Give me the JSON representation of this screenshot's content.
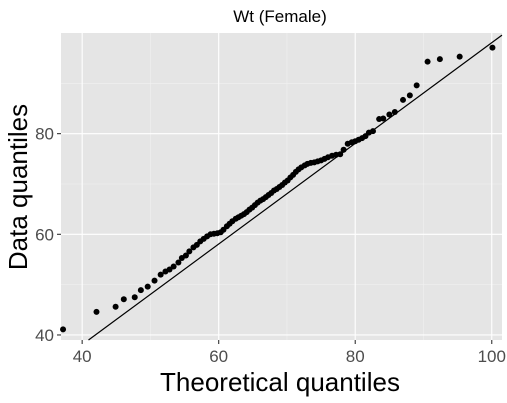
{
  "chart_data": {
    "type": "scatter",
    "title": "Wt (Female)",
    "xlabel": "Theoretical quantiles",
    "ylabel": "Data quantiles",
    "xlim": [
      36.9,
      101.5
    ],
    "ylim": [
      39.0,
      100.0
    ],
    "x_ticks": [
      40,
      60,
      80,
      100
    ],
    "y_ticks": [
      40,
      60,
      80
    ],
    "x_tick_labels": [
      "40",
      "60",
      "80",
      "100"
    ],
    "y_tick_labels": [
      "40",
      "60",
      "80"
    ],
    "grid": true,
    "reference_line": {
      "intercept": -1.93,
      "slope": 1.0
    },
    "points": [
      {
        "x": 37.2,
        "y": 41.1
      },
      {
        "x": 42.1,
        "y": 44.6
      },
      {
        "x": 44.9,
        "y": 45.6
      },
      {
        "x": 46.1,
        "y": 47.1
      },
      {
        "x": 47.7,
        "y": 47.5
      },
      {
        "x": 48.6,
        "y": 48.9
      },
      {
        "x": 49.6,
        "y": 49.6
      },
      {
        "x": 50.6,
        "y": 50.8
      },
      {
        "x": 51.5,
        "y": 52.0
      },
      {
        "x": 52.2,
        "y": 52.6
      },
      {
        "x": 52.8,
        "y": 53.0
      },
      {
        "x": 53.4,
        "y": 53.6
      },
      {
        "x": 54.1,
        "y": 54.4
      },
      {
        "x": 54.6,
        "y": 55.3
      },
      {
        "x": 55.2,
        "y": 55.8
      },
      {
        "x": 55.7,
        "y": 56.6
      },
      {
        "x": 56.3,
        "y": 57.4
      },
      {
        "x": 56.8,
        "y": 57.9
      },
      {
        "x": 57.3,
        "y": 58.6
      },
      {
        "x": 57.8,
        "y": 59.1
      },
      {
        "x": 58.3,
        "y": 59.6
      },
      {
        "x": 58.8,
        "y": 60.0
      },
      {
        "x": 59.3,
        "y": 60.1
      },
      {
        "x": 59.8,
        "y": 60.2
      },
      {
        "x": 60.3,
        "y": 60.4
      },
      {
        "x": 60.7,
        "y": 60.9
      },
      {
        "x": 61.2,
        "y": 61.6
      },
      {
        "x": 61.6,
        "y": 62.1
      },
      {
        "x": 62.0,
        "y": 62.6
      },
      {
        "x": 62.5,
        "y": 63.1
      },
      {
        "x": 62.9,
        "y": 63.4
      },
      {
        "x": 63.3,
        "y": 63.7
      },
      {
        "x": 63.7,
        "y": 64.0
      },
      {
        "x": 64.1,
        "y": 64.4
      },
      {
        "x": 64.5,
        "y": 64.9
      },
      {
        "x": 64.9,
        "y": 65.3
      },
      {
        "x": 65.3,
        "y": 65.8
      },
      {
        "x": 65.7,
        "y": 66.3
      },
      {
        "x": 66.1,
        "y": 66.7
      },
      {
        "x": 66.5,
        "y": 67.0
      },
      {
        "x": 66.9,
        "y": 67.4
      },
      {
        "x": 67.3,
        "y": 67.8
      },
      {
        "x": 67.7,
        "y": 68.2
      },
      {
        "x": 68.1,
        "y": 68.7
      },
      {
        "x": 68.5,
        "y": 69.0
      },
      {
        "x": 68.9,
        "y": 69.4
      },
      {
        "x": 69.3,
        "y": 69.8
      },
      {
        "x": 69.7,
        "y": 70.3
      },
      {
        "x": 70.1,
        "y": 70.7
      },
      {
        "x": 70.5,
        "y": 71.3
      },
      {
        "x": 70.9,
        "y": 71.8
      },
      {
        "x": 71.3,
        "y": 72.4
      },
      {
        "x": 71.7,
        "y": 72.9
      },
      {
        "x": 72.1,
        "y": 73.3
      },
      {
        "x": 72.6,
        "y": 73.7
      },
      {
        "x": 73.0,
        "y": 74.0
      },
      {
        "x": 73.5,
        "y": 74.2
      },
      {
        "x": 74.0,
        "y": 74.3
      },
      {
        "x": 74.5,
        "y": 74.5
      },
      {
        "x": 75.0,
        "y": 74.7
      },
      {
        "x": 75.5,
        "y": 75.0
      },
      {
        "x": 76.0,
        "y": 75.3
      },
      {
        "x": 76.6,
        "y": 75.6
      },
      {
        "x": 77.2,
        "y": 75.8
      },
      {
        "x": 77.8,
        "y": 75.9
      },
      {
        "x": 78.3,
        "y": 76.8
      },
      {
        "x": 78.9,
        "y": 78.0
      },
      {
        "x": 79.5,
        "y": 78.3
      },
      {
        "x": 80.0,
        "y": 78.5
      },
      {
        "x": 80.5,
        "y": 78.8
      },
      {
        "x": 81.0,
        "y": 79.1
      },
      {
        "x": 81.5,
        "y": 79.5
      },
      {
        "x": 82.0,
        "y": 80.2
      },
      {
        "x": 82.6,
        "y": 80.5
      },
      {
        "x": 83.5,
        "y": 82.9
      },
      {
        "x": 84.1,
        "y": 83.0
      },
      {
        "x": 85.0,
        "y": 83.8
      },
      {
        "x": 85.8,
        "y": 84.3
      },
      {
        "x": 87.0,
        "y": 86.7
      },
      {
        "x": 88.0,
        "y": 87.6
      },
      {
        "x": 89.0,
        "y": 89.6
      },
      {
        "x": 90.6,
        "y": 94.3
      },
      {
        "x": 92.4,
        "y": 94.8
      },
      {
        "x": 95.3,
        "y": 95.3
      },
      {
        "x": 100.1,
        "y": 97.1
      }
    ]
  }
}
